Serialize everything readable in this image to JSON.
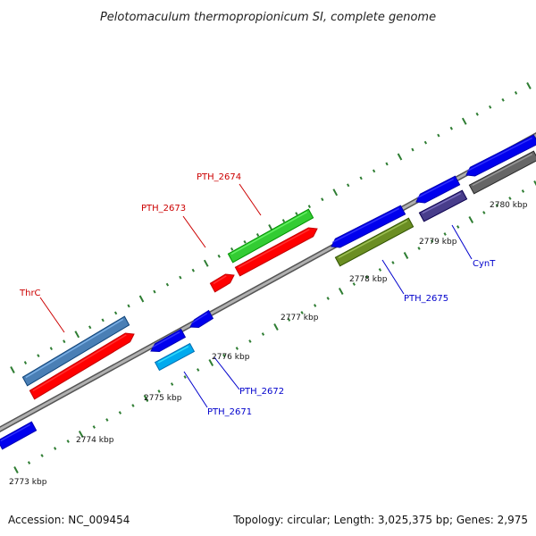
{
  "header": {
    "title": "Pelotomaculum thermopropionicum SI, complete genome"
  },
  "footer": {
    "accession": "Accession: NC_009454",
    "summary": "Topology: circular; Length: 3,025,375 bp; Genes: 2,975"
  },
  "colors": {
    "backbone": "#888888",
    "tick": "#2e7d32",
    "label_red": "#cc0000",
    "label_blue": "#0000cc"
  },
  "tick_labels": {
    "t2773": "2773 kbp",
    "t2774": "2774 kbp",
    "t2775": "2775 kbp",
    "t2776": "2776 kbp",
    "t2777": "2777 kbp",
    "t2778": "2778 kbp",
    "t2779": "2779 kbp",
    "t2780": "2780 kbp"
  },
  "gene_labels": {
    "thrc": "ThrC",
    "pth_2673": "PTH_2673",
    "pth_2674": "PTH_2674",
    "pth_2671": "PTH_2671",
    "pth_2672": "PTH_2672",
    "pth_2675": "PTH_2675",
    "cynt": "CynT"
  },
  "features": [
    {
      "id": "thrc-top",
      "color": "#4a7fb5"
    },
    {
      "id": "thrc-bottom",
      "color": "#ff0000"
    },
    {
      "id": "pth2673",
      "color": "#ff0000"
    },
    {
      "id": "pth2674-green",
      "color": "#33cc33"
    },
    {
      "id": "pth2674-red",
      "color": "#ff0000"
    },
    {
      "id": "pth2671",
      "color": "#0000ee"
    },
    {
      "id": "pth2671-cyan",
      "color": "#00aaee"
    },
    {
      "id": "pth2672",
      "color": "#0000ee"
    },
    {
      "id": "pth2675-blue",
      "color": "#0000ee"
    },
    {
      "id": "pth2675-olive",
      "color": "#6b8e23"
    },
    {
      "id": "cynt-blue",
      "color": "#0000ee"
    },
    {
      "id": "cynt-purple",
      "color": "#483d8b"
    },
    {
      "id": "right-blue",
      "color": "#0000ee"
    },
    {
      "id": "right-gray",
      "color": "#666666"
    },
    {
      "id": "left-blue",
      "color": "#0000ee"
    }
  ]
}
